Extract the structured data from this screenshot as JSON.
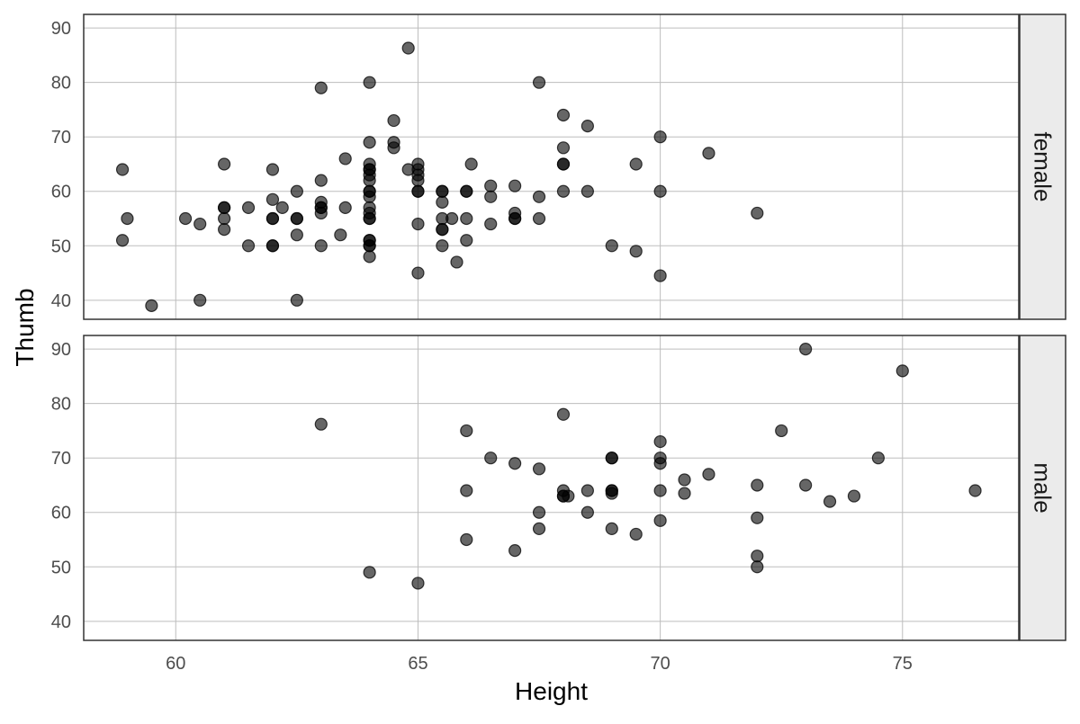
{
  "chart_data": {
    "type": "scatter",
    "title": "",
    "xlabel": "Height",
    "ylabel": "Thumb",
    "xlim": [
      58.1,
      77.4
    ],
    "ylim": [
      36.5,
      92.5
    ],
    "x_ticks": [
      60,
      65,
      70,
      75
    ],
    "y_ticks": [
      40,
      50,
      60,
      70,
      80,
      90
    ],
    "grid": true,
    "facet_position": "right",
    "point_color": "#000000",
    "point_opacity": 0.6,
    "panel_border_color": "#333333",
    "grid_color": "#bdbdbd",
    "strip_fill": "#ebebeb",
    "panels": [
      {
        "label": "female",
        "points": [
          [
            58.9,
            64
          ],
          [
            59.0,
            55
          ],
          [
            58.9,
            51
          ],
          [
            59.5,
            39
          ],
          [
            60.2,
            55
          ],
          [
            60.5,
            54
          ],
          [
            60.5,
            40
          ],
          [
            61.0,
            65
          ],
          [
            61.0,
            57
          ],
          [
            61.0,
            57
          ],
          [
            61.0,
            55
          ],
          [
            61.0,
            53
          ],
          [
            61.5,
            57
          ],
          [
            61.5,
            50
          ],
          [
            62.0,
            64
          ],
          [
            62.0,
            58.5
          ],
          [
            62.0,
            55
          ],
          [
            62.0,
            55
          ],
          [
            62.0,
            50
          ],
          [
            62.0,
            50
          ],
          [
            62.2,
            57
          ],
          [
            62.5,
            60
          ],
          [
            62.5,
            55
          ],
          [
            62.5,
            55
          ],
          [
            62.5,
            52
          ],
          [
            62.5,
            40
          ],
          [
            63.0,
            79
          ],
          [
            63.0,
            62
          ],
          [
            63.0,
            58
          ],
          [
            63.0,
            57
          ],
          [
            63.0,
            57
          ],
          [
            63.0,
            56
          ],
          [
            63.0,
            50
          ],
          [
            63.4,
            52
          ],
          [
            63.5,
            66
          ],
          [
            63.5,
            57
          ],
          [
            64.0,
            80
          ],
          [
            64.0,
            69
          ],
          [
            64.0,
            65
          ],
          [
            64.0,
            64
          ],
          [
            64.0,
            64
          ],
          [
            64.0,
            63
          ],
          [
            64.0,
            62
          ],
          [
            64.0,
            60
          ],
          [
            64.0,
            60
          ],
          [
            64.0,
            59
          ],
          [
            64.0,
            57
          ],
          [
            64.0,
            56
          ],
          [
            64.0,
            55
          ],
          [
            64.0,
            55
          ],
          [
            64.0,
            51
          ],
          [
            64.0,
            51
          ],
          [
            64.0,
            50
          ],
          [
            64.0,
            50
          ],
          [
            64.0,
            48
          ],
          [
            64.5,
            73
          ],
          [
            64.5,
            69
          ],
          [
            64.5,
            68
          ],
          [
            64.8,
            86.3
          ],
          [
            64.8,
            64
          ],
          [
            65.0,
            65
          ],
          [
            65.0,
            64
          ],
          [
            65.0,
            63
          ],
          [
            65.0,
            62
          ],
          [
            65.0,
            60
          ],
          [
            65.0,
            60
          ],
          [
            65.0,
            54
          ],
          [
            65.0,
            45
          ],
          [
            65.5,
            60
          ],
          [
            65.5,
            60
          ],
          [
            65.5,
            58
          ],
          [
            65.5,
            55
          ],
          [
            65.5,
            53
          ],
          [
            65.5,
            53
          ],
          [
            65.5,
            50
          ],
          [
            65.7,
            55
          ],
          [
            65.8,
            47
          ],
          [
            66.0,
            60
          ],
          [
            66.0,
            60
          ],
          [
            66.0,
            55
          ],
          [
            66.0,
            51
          ],
          [
            66.1,
            65
          ],
          [
            66.5,
            61
          ],
          [
            66.5,
            59
          ],
          [
            66.5,
            54
          ],
          [
            67.0,
            61
          ],
          [
            67.0,
            56
          ],
          [
            67.0,
            55
          ],
          [
            67.0,
            55
          ],
          [
            67.5,
            80
          ],
          [
            67.5,
            59
          ],
          [
            67.5,
            55
          ],
          [
            68.0,
            74
          ],
          [
            68.0,
            68
          ],
          [
            68.0,
            65
          ],
          [
            68.0,
            65
          ],
          [
            68.0,
            60
          ],
          [
            68.5,
            72
          ],
          [
            68.5,
            60
          ],
          [
            69.0,
            50
          ],
          [
            69.5,
            65
          ],
          [
            69.5,
            49
          ],
          [
            70.0,
            70
          ],
          [
            70.0,
            60
          ],
          [
            70.0,
            44.5
          ],
          [
            71.0,
            67
          ],
          [
            72.0,
            56
          ]
        ]
      },
      {
        "label": "male",
        "points": [
          [
            63.0,
            76.2
          ],
          [
            64.0,
            49
          ],
          [
            65.0,
            47
          ],
          [
            66.0,
            75
          ],
          [
            66.0,
            64
          ],
          [
            66.0,
            55
          ],
          [
            66.5,
            70
          ],
          [
            67.0,
            69
          ],
          [
            67.0,
            53
          ],
          [
            67.5,
            68
          ],
          [
            67.5,
            60
          ],
          [
            67.5,
            57
          ],
          [
            68.0,
            78
          ],
          [
            68.0,
            64
          ],
          [
            68.0,
            63
          ],
          [
            68.0,
            63
          ],
          [
            68.1,
            63
          ],
          [
            68.5,
            64
          ],
          [
            68.5,
            60
          ],
          [
            69.0,
            70
          ],
          [
            69.0,
            70
          ],
          [
            69.0,
            64
          ],
          [
            69.0,
            64
          ],
          [
            69.0,
            63.5
          ],
          [
            69.0,
            57
          ],
          [
            69.5,
            56
          ],
          [
            70.0,
            73
          ],
          [
            70.0,
            70
          ],
          [
            70.0,
            69
          ],
          [
            70.0,
            64
          ],
          [
            70.0,
            58.5
          ],
          [
            70.5,
            66
          ],
          [
            70.5,
            63.5
          ],
          [
            71.0,
            67
          ],
          [
            72.0,
            65
          ],
          [
            72.0,
            59
          ],
          [
            72.0,
            52
          ],
          [
            72.0,
            50
          ],
          [
            72.5,
            75
          ],
          [
            73.0,
            90
          ],
          [
            73.0,
            65
          ],
          [
            73.5,
            62
          ],
          [
            74.0,
            63
          ],
          [
            74.5,
            70
          ],
          [
            75.0,
            86
          ],
          [
            76.5,
            64
          ]
        ]
      }
    ]
  }
}
